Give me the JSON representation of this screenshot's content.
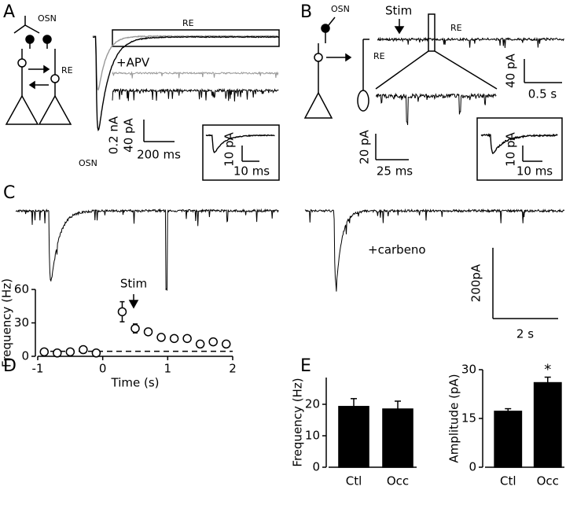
{
  "panel_labels": [
    "A",
    "B",
    "C",
    "D",
    "E"
  ],
  "panel_a": {
    "osn": "OSN",
    "re": "RE",
    "box": "RE",
    "apv": "+APV",
    "scale_na": "0.2 nA",
    "scale_pa": "40 pA",
    "scale_ms": "200 ms",
    "trace": "OSN",
    "inset_pa": "10 pA",
    "inset_ms": "10 ms"
  },
  "panel_b": {
    "osn": "OSN",
    "stim": "Stim",
    "re": "RE",
    "trace_re": "RE",
    "scale_pa": "40 pA",
    "scale_s": "0.5 s",
    "zoom_pa": "20 pA",
    "zoom_ms": "25 ms",
    "inset_pa": "10 pA",
    "inset_ms": "10 ms"
  },
  "panel_c": {
    "drug": "+carbeno",
    "scale_pa": "200pA",
    "scale_s": "2 s"
  },
  "chart_data": [
    {
      "type": "scatter",
      "xlabel": "Time (s)",
      "ylabel": "Frequency (Hz)",
      "annotation": "Stim",
      "x": [
        -0.9,
        -0.7,
        -0.5,
        -0.3,
        -0.1,
        0.3,
        0.5,
        0.7,
        0.9,
        1.1,
        1.3,
        1.5,
        1.7,
        1.9
      ],
      "values": [
        4,
        3,
        4,
        6,
        3,
        40,
        25,
        22,
        17,
        16,
        16,
        11,
        13,
        11
      ],
      "errors": [
        1.5,
        1.5,
        1.5,
        2,
        1.5,
        9,
        4,
        3,
        2,
        2,
        2,
        3,
        3,
        2
      ],
      "reference_line": 4.5,
      "xlim": [
        -1,
        2
      ],
      "ylim": [
        0,
        60
      ],
      "xticks": [
        -1,
        0,
        1,
        2
      ],
      "yticks": [
        0,
        30,
        60
      ],
      "color": "#000000"
    },
    {
      "type": "bar",
      "ylabel": "Frequency (Hz)",
      "categories": [
        "Ctl",
        "Occ"
      ],
      "values": [
        19.3,
        18.5
      ],
      "errors": [
        2.5,
        2.5
      ],
      "ylim": [
        0,
        28.5
      ],
      "yticks": [
        0,
        10,
        20
      ],
      "color": "#000000"
    },
    {
      "type": "bar",
      "ylabel": "Amplitude (pA)",
      "categories": [
        "Ctl",
        "Occ"
      ],
      "values": [
        17.2,
        26
      ],
      "errors": [
        0.8,
        1.7
      ],
      "value_annotations": [
        null,
        "*"
      ],
      "ylim": [
        0,
        30
      ],
      "yticks": [
        0,
        15,
        30
      ],
      "color": "#000000"
    }
  ]
}
